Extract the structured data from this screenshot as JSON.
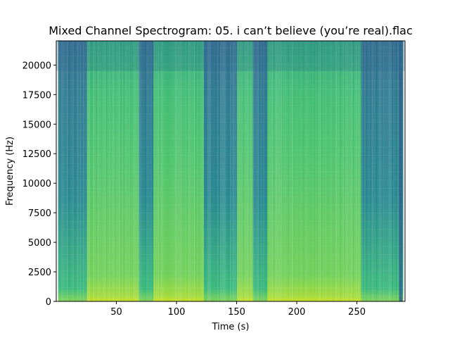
{
  "chart_data": {
    "type": "heatmap",
    "title": "Mixed Channel Spectrogram: 05. i can’t believe (you’re real).flac",
    "xlabel": "Time (s)",
    "ylabel": "Frequency (Hz)",
    "xlim": [
      0,
      290
    ],
    "ylim": [
      0,
      22050
    ],
    "x_ticks": [
      50,
      100,
      150,
      200,
      250
    ],
    "y_ticks": [
      0,
      2500,
      5000,
      7500,
      10000,
      12500,
      15000,
      17500,
      20000
    ],
    "colormap": "viridis",
    "grid": false,
    "quiet_sections_s": [
      [
        0,
        25
      ],
      [
        68,
        80
      ],
      [
        122,
        150
      ],
      [
        163,
        175
      ],
      [
        253,
        290
      ]
    ],
    "colors": {
      "low": "#3b528b",
      "mid": "#21908d",
      "high": "#5ec962",
      "peak": "#bddf26"
    }
  }
}
